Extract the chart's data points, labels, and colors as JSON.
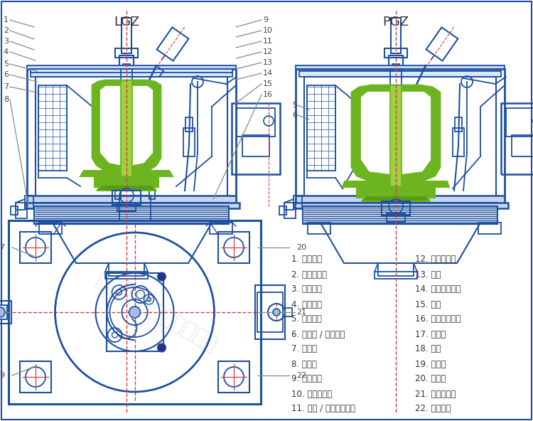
{
  "title_lgz": "LGZ",
  "title_pgz": "PGZ",
  "bg_color": "#ffffff",
  "blue": "#1e50a0",
  "blue2": "#2060b8",
  "green_fill": "#6db520",
  "green_light": "#c8e880",
  "green_mid": "#a0d040",
  "red_dash": "#d04040",
  "gray_leader": "#888888",
  "text_dark": "#333333",
  "base_fill": "#c8d8f0",
  "inner_fill": "#d8e8f8",
  "labels_left": [
    "1. 刷刀装置",
    "2. 上盖板总成",
    "3. 外壳总成",
    "4. 在线清洗",
    "5. 转鼓总成",
    "6. 中心盘 / 轴承座圈",
    "7. 减震器",
    "8. 出料口",
    "9. 布料电机",
    "10. 斜盘布料器",
    "11. 气压 / 液压开盖装置"
  ],
  "labels_right": [
    "12. 电机防护罩",
    "13. 电机",
    "14. 传动带防护罩",
    "15. 机座",
    "16. 卸料口密闭阀",
    "17. 洗涤管",
    "18. 刷刀",
    "19. 排液管",
    "20. 料位器",
    "21. 防暴照明灯",
    "22. 检修盖板"
  ]
}
